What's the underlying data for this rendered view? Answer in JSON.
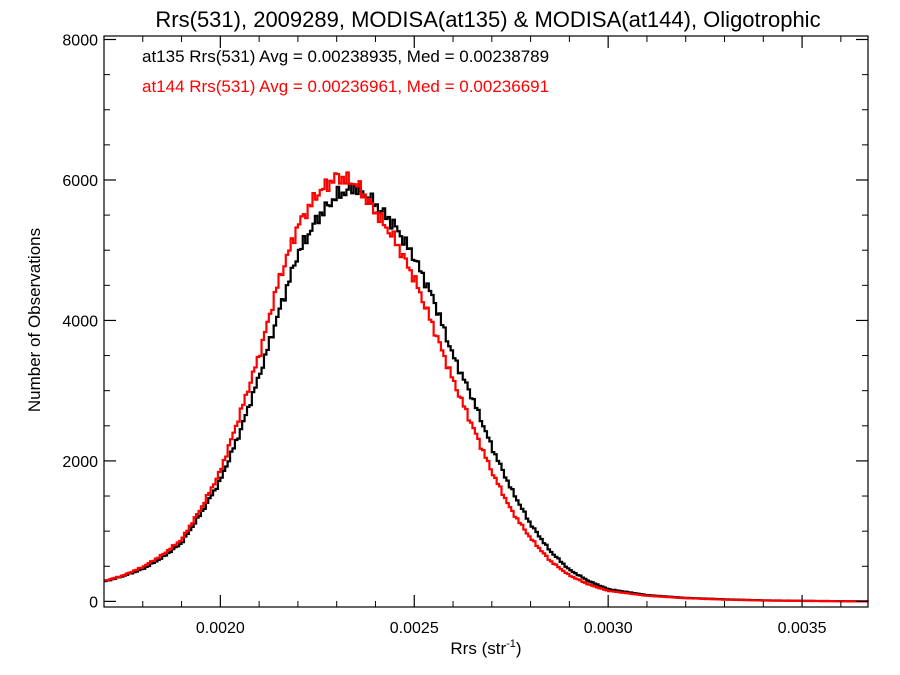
{
  "chart_data": {
    "type": "line",
    "step": true,
    "title": "Rrs(531), 2009289, MODISA(at135) & MODISA(at144), Oligotrophic",
    "xlabel": "Rrs (str",
    "xlabel_sup": "-1",
    "xlabel_end": ")",
    "ylabel": "Number of Observations",
    "xlim": [
      0.0017,
      0.00367
    ],
    "ylim": [
      -80,
      8050
    ],
    "xticks": [
      0.002,
      0.0025,
      0.003,
      0.0035
    ],
    "xtick_labels": [
      "0.0020",
      "0.0025",
      "0.0030",
      "0.0035"
    ],
    "xminor_step": 0.0001,
    "yticks": [
      0,
      2000,
      4000,
      6000,
      8000
    ],
    "ytick_labels": [
      "0",
      "2000",
      "4000",
      "6000",
      "8000"
    ],
    "yminor_step": 500,
    "annotations": [
      {
        "text": "at135 Rrs(531) Avg = 0.00238935, Med = 0.00238789",
        "color": "#000000"
      },
      {
        "text": "at144 Rrs(531) Avg = 0.00236961, Med = 0.00236691",
        "color": "#ff0000"
      }
    ],
    "series": [
      {
        "color": "#000000",
        "points": [
          [
            0.0017,
            280
          ],
          [
            0.00175,
            360
          ],
          [
            0.0018,
            460
          ],
          [
            0.00185,
            620
          ],
          [
            0.0019,
            830
          ],
          [
            0.00195,
            1250
          ],
          [
            0.002,
            1720
          ],
          [
            0.00205,
            2400
          ],
          [
            0.0021,
            3200
          ],
          [
            0.00215,
            4100
          ],
          [
            0.0022,
            4950
          ],
          [
            0.00225,
            5450
          ],
          [
            0.0023,
            5780
          ],
          [
            0.00235,
            5900
          ],
          [
            0.0024,
            5650
          ],
          [
            0.00245,
            5350
          ],
          [
            0.0025,
            4900
          ],
          [
            0.00255,
            4300
          ],
          [
            0.0026,
            3500
          ],
          [
            0.00265,
            2900
          ],
          [
            0.0027,
            2200
          ],
          [
            0.00275,
            1600
          ],
          [
            0.0028,
            1100
          ],
          [
            0.00285,
            720
          ],
          [
            0.0029,
            450
          ],
          [
            0.00295,
            290
          ],
          [
            0.003,
            175
          ],
          [
            0.0031,
            90
          ],
          [
            0.0032,
            50
          ],
          [
            0.0033,
            30
          ],
          [
            0.0034,
            15
          ],
          [
            0.0035,
            8
          ],
          [
            0.00367,
            0
          ]
        ]
      },
      {
        "color": "#ff0000",
        "points": [
          [
            0.0017,
            290
          ],
          [
            0.00175,
            370
          ],
          [
            0.0018,
            490
          ],
          [
            0.00185,
            660
          ],
          [
            0.0019,
            880
          ],
          [
            0.00195,
            1320
          ],
          [
            0.002,
            1850
          ],
          [
            0.00205,
            2650
          ],
          [
            0.0021,
            3500
          ],
          [
            0.00215,
            4550
          ],
          [
            0.0022,
            5350
          ],
          [
            0.00225,
            5800
          ],
          [
            0.0023,
            6050
          ],
          [
            0.00235,
            5950
          ],
          [
            0.0024,
            5550
          ],
          [
            0.00245,
            5150
          ],
          [
            0.0025,
            4600
          ],
          [
            0.00255,
            3900
          ],
          [
            0.0026,
            3150
          ],
          [
            0.00265,
            2500
          ],
          [
            0.0027,
            1850
          ],
          [
            0.00275,
            1300
          ],
          [
            0.0028,
            900
          ],
          [
            0.00285,
            580
          ],
          [
            0.0029,
            370
          ],
          [
            0.00295,
            240
          ],
          [
            0.003,
            150
          ],
          [
            0.0031,
            80
          ],
          [
            0.0032,
            45
          ],
          [
            0.0033,
            25
          ],
          [
            0.0034,
            12
          ],
          [
            0.0035,
            6
          ],
          [
            0.00367,
            0
          ]
        ]
      }
    ]
  }
}
